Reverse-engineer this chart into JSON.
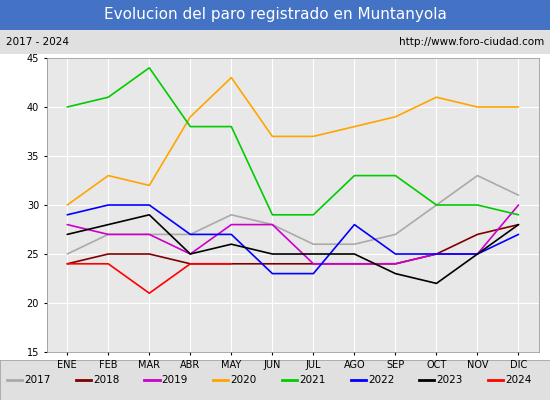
{
  "title": "Evolucion del paro registrado en Muntanyola",
  "subtitle_left": "2017 - 2024",
  "subtitle_right": "http://www.foro-ciudad.com",
  "months": [
    "ENE",
    "FEB",
    "MAR",
    "ABR",
    "MAY",
    "JUN",
    "JUL",
    "AGO",
    "SEP",
    "OCT",
    "NOV",
    "DIC"
  ],
  "ylim": [
    15,
    45
  ],
  "yticks": [
    15,
    20,
    25,
    30,
    35,
    40,
    45
  ],
  "series": {
    "2017": {
      "color": "#aaaaaa",
      "values": [
        25,
        27,
        27,
        27,
        29,
        28,
        26,
        26,
        27,
        30,
        33,
        31
      ]
    },
    "2018": {
      "color": "#800000",
      "values": [
        24,
        25,
        25,
        24,
        24,
        24,
        24,
        24,
        24,
        25,
        27,
        28
      ]
    },
    "2019": {
      "color": "#cc00cc",
      "values": [
        28,
        27,
        27,
        25,
        28,
        28,
        24,
        24,
        24,
        25,
        25,
        30
      ]
    },
    "2020": {
      "color": "#ffa500",
      "values": [
        30,
        33,
        32,
        39,
        43,
        37,
        37,
        38,
        39,
        41,
        40,
        40
      ]
    },
    "2021": {
      "color": "#00cc00",
      "values": [
        40,
        41,
        44,
        38,
        38,
        29,
        29,
        33,
        33,
        30,
        30,
        29
      ]
    },
    "2022": {
      "color": "#0000ff",
      "values": [
        29,
        30,
        30,
        27,
        27,
        23,
        23,
        28,
        25,
        25,
        25,
        27
      ]
    },
    "2023": {
      "color": "#000000",
      "values": [
        27,
        28,
        29,
        25,
        26,
        25,
        25,
        25,
        23,
        22,
        25,
        28
      ]
    },
    "2024": {
      "color": "#ff0000",
      "values": [
        24,
        24,
        21,
        24,
        24,
        null,
        null,
        null,
        null,
        null,
        null,
        null
      ]
    }
  },
  "title_bg_color": "#4472c4",
  "title_text_color": "#ffffff",
  "subtitle_bg_color": "#e0e0e0",
  "plot_bg_color": "#e8e8e8",
  "grid_color": "#ffffff",
  "title_fontsize": 11,
  "subtitle_fontsize": 7.5,
  "tick_fontsize": 7,
  "legend_fontsize": 7.5
}
